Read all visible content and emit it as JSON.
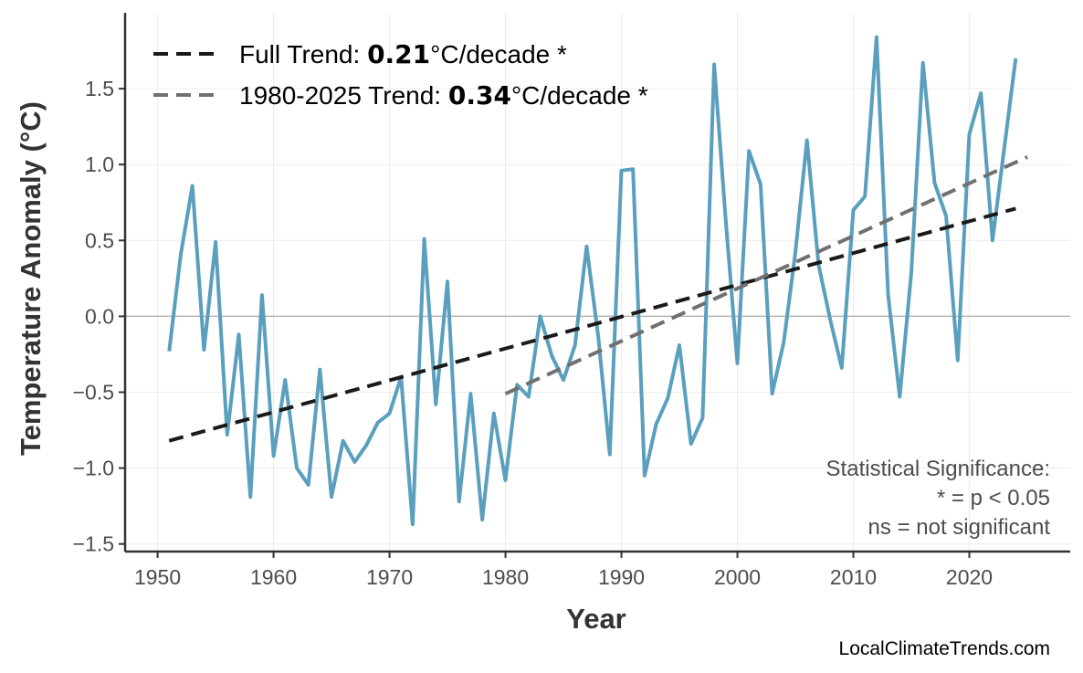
{
  "chart_data": {
    "type": "line",
    "xlabel": "Year",
    "ylabel": "Temperature Anomaly (°C)",
    "xlim": [
      1947.2,
      2028.7
    ],
    "ylim": [
      -1.55,
      2.0
    ],
    "xticks": [
      1950,
      1960,
      1970,
      1980,
      1990,
      2000,
      2010,
      2020
    ],
    "yticks": [
      -1.5,
      -1.0,
      -0.5,
      0.0,
      0.5,
      1.0,
      1.5
    ],
    "ytick_labels": [
      "−1.5",
      "−1.0",
      "−0.5",
      "0.0",
      "0.5",
      "1.0",
      "1.5"
    ],
    "xtick_labels": [
      "1950",
      "1960",
      "1970",
      "1980",
      "1990",
      "2000",
      "2010",
      "2020"
    ],
    "grid": true,
    "zero_line": true,
    "series": [
      {
        "color": "#5a9fbd",
        "x": [
          1951,
          1952,
          1953,
          1954,
          1955,
          1956,
          1957,
          1958,
          1959,
          1960,
          1961,
          1962,
          1963,
          1964,
          1965,
          1966,
          1967,
          1968,
          1969,
          1970,
          1971,
          1972,
          1973,
          1974,
          1975,
          1976,
          1977,
          1978,
          1979,
          1980,
          1981,
          1982,
          1983,
          1984,
          1985,
          1986,
          1987,
          1988,
          1989,
          1990,
          1991,
          1992,
          1993,
          1994,
          1995,
          1996,
          1997,
          1998,
          1999,
          2000,
          2001,
          2002,
          2003,
          2004,
          2005,
          2006,
          2007,
          2008,
          2009,
          2010,
          2011,
          2012,
          2013,
          2014,
          2015,
          2016,
          2017,
          2018,
          2019,
          2020,
          2021,
          2022,
          2023,
          2024
        ],
        "y": [
          -0.23,
          0.41,
          0.86,
          -0.22,
          0.49,
          -0.78,
          -0.12,
          -1.19,
          0.14,
          -0.92,
          -0.42,
          -1.0,
          -1.11,
          -0.35,
          -1.19,
          -0.82,
          -0.96,
          -0.85,
          -0.7,
          -0.64,
          -0.4,
          -1.37,
          0.51,
          -0.58,
          0.23,
          -1.22,
          -0.51,
          -1.34,
          -0.64,
          -1.08,
          -0.45,
          -0.53,
          0.0,
          -0.26,
          -0.42,
          -0.19,
          0.46,
          -0.13,
          -0.91,
          0.96,
          0.97,
          -1.05,
          -0.71,
          -0.54,
          -0.19,
          -0.84,
          -0.67,
          1.66,
          0.63,
          -0.31,
          1.09,
          0.87,
          -0.51,
          -0.17,
          0.42,
          1.16,
          0.34,
          -0.02,
          -0.34,
          0.7,
          0.79,
          1.84,
          0.14,
          -0.53,
          0.29,
          1.67,
          0.88,
          0.66,
          -0.29,
          1.2,
          1.47,
          0.5,
          1.1,
          1.7
        ]
      }
    ],
    "trends": [
      {
        "name": "Full Trend",
        "x": [
          1951,
          2024
        ],
        "y": [
          -0.82,
          0.71
        ],
        "color": "#1a1a1a"
      },
      {
        "name": "1980-2025 Trend",
        "x": [
          1980,
          2025
        ],
        "y": [
          -0.51,
          1.05
        ],
        "color": "#707070"
      }
    ]
  },
  "legend": {
    "items": [
      {
        "prefix": "Full Trend: ",
        "value": "0.21",
        "suffix": "°C/decade *",
        "color": "#1a1a1a"
      },
      {
        "prefix": "1980-2025 Trend: ",
        "value": "0.34",
        "suffix": "°C/decade *",
        "color": "#707070"
      }
    ]
  },
  "significance": {
    "line1": "Statistical Significance:",
    "line2": "* = p < 0.05",
    "line3": "ns = not significant"
  },
  "credit": "LocalClimateTrends.com"
}
